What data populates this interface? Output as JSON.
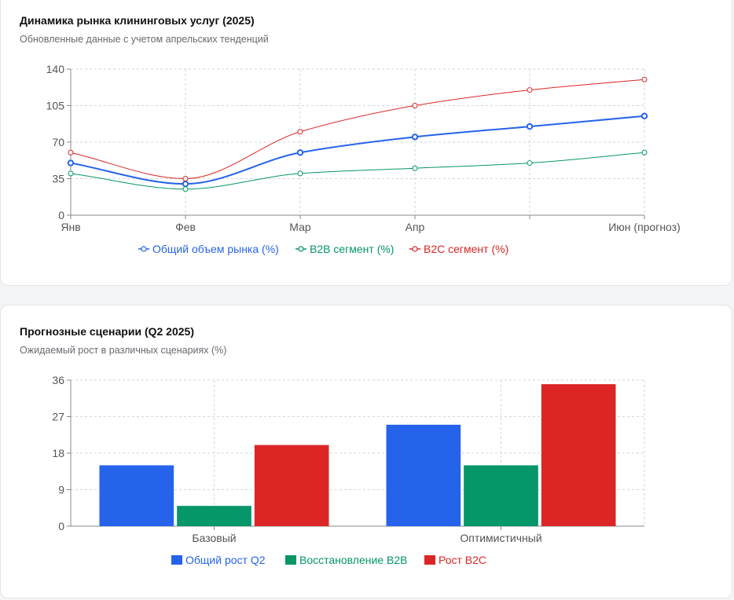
{
  "cards": [
    {
      "title": "Динамика рынка клининговых услуг (2025)",
      "subtitle": "Обновленные данные с учетом апрельских тенденций"
    },
    {
      "title": "Прогнозные сценарии (Q2 2025)",
      "subtitle": "Ожидаемый рост в различных сценариях (%)"
    }
  ],
  "chart_data": [
    {
      "type": "line",
      "categories": [
        "Янв",
        "Фев",
        "Мар",
        "Апр",
        "",
        "Июн (прогноз)"
      ],
      "yticks": [
        0,
        35,
        70,
        105,
        140
      ],
      "ylim": [
        0,
        140
      ],
      "grid": true,
      "legend_position": "bottom",
      "series": [
        {
          "name": "Общий объем рынка (%)",
          "values": [
            50,
            30,
            60,
            75,
            85,
            95
          ],
          "color": "#2563eb"
        },
        {
          "name": "B2B сегмент (%)",
          "values": [
            40,
            25,
            40,
            45,
            50,
            60
          ],
          "color": "#059669"
        },
        {
          "name": "B2C сегмент (%)",
          "values": [
            60,
            35,
            80,
            105,
            120,
            130
          ],
          "color": "#dc2626"
        }
      ]
    },
    {
      "type": "bar",
      "categories": [
        "Базовый",
        "Оптимистичный"
      ],
      "yticks": [
        0,
        9,
        18,
        27,
        36
      ],
      "ylim": [
        0,
        36
      ],
      "grid": true,
      "legend_position": "bottom",
      "series": [
        {
          "name": "Общий рост Q2",
          "values": [
            15,
            25
          ],
          "color": "#2563eb"
        },
        {
          "name": "Восстановление B2B",
          "values": [
            5,
            15
          ],
          "color": "#059669"
        },
        {
          "name": "Рост B2C",
          "values": [
            20,
            35
          ],
          "color": "#dc2626"
        }
      ]
    }
  ]
}
